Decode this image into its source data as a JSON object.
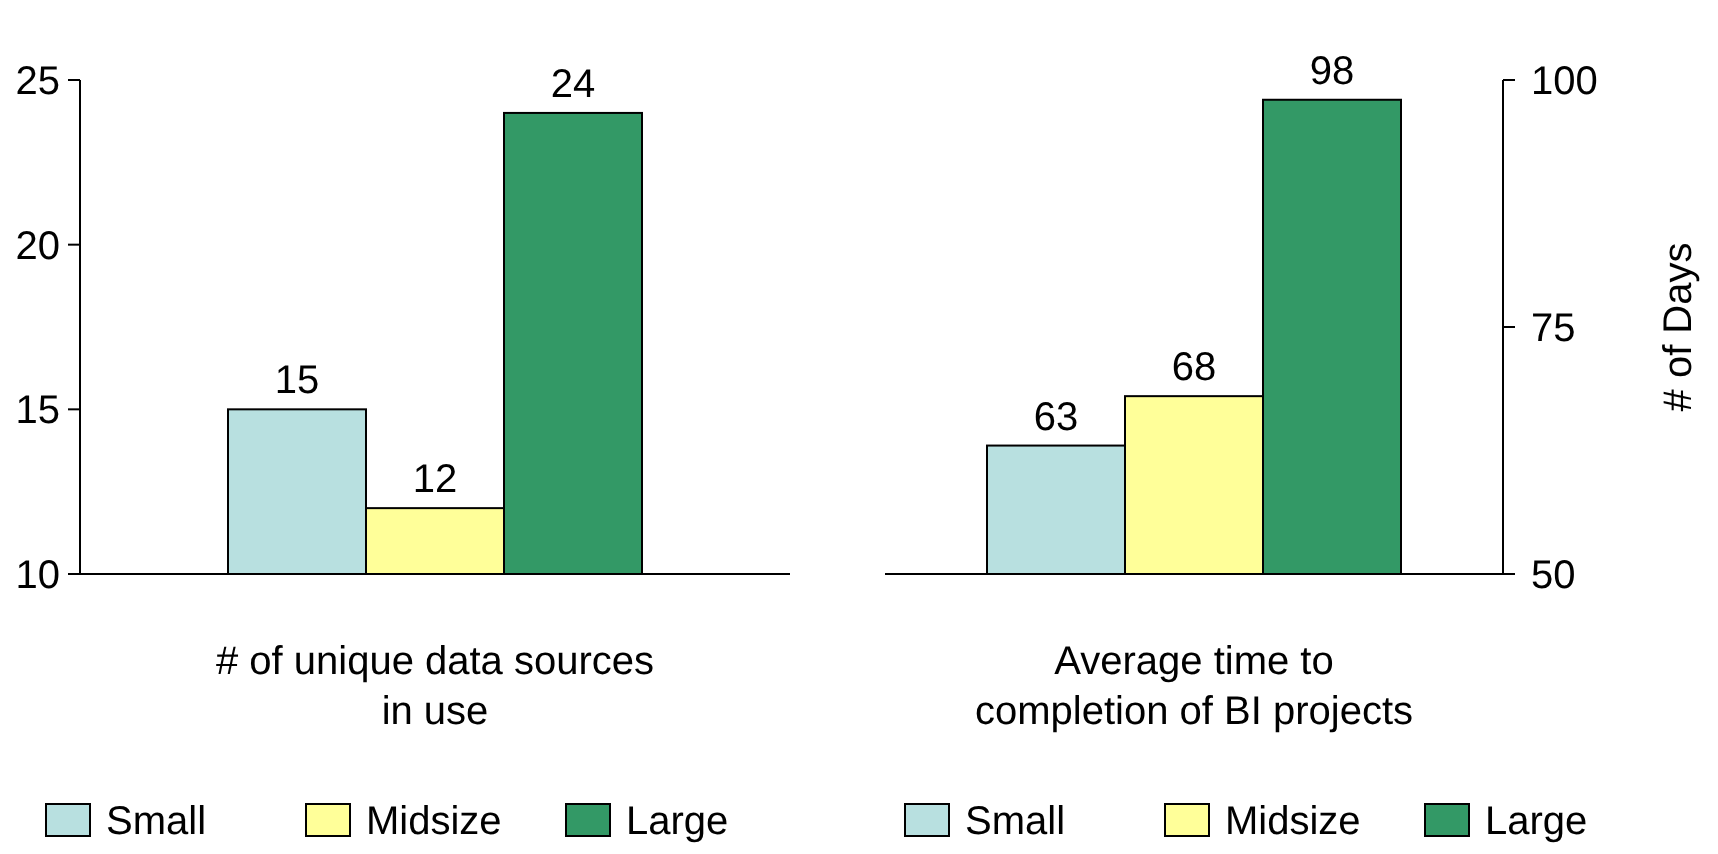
{
  "chart_data": [
    {
      "type": "bar",
      "categories": [
        null
      ],
      "xlabel": "# of unique data sources in use",
      "ylim": [
        10,
        25
      ],
      "yticks": [
        10,
        15,
        20,
        25
      ],
      "data_labels": true,
      "legend": "bottom",
      "grid": false,
      "series": [
        {
          "name": "Small",
          "color": "#b8e0e0",
          "values": [
            15
          ]
        },
        {
          "name": "Midsize",
          "color": "#ffff99",
          "values": [
            12
          ]
        },
        {
          "name": "Large",
          "color": "#339966",
          "values": [
            24
          ]
        }
      ]
    },
    {
      "type": "bar",
      "categories": [
        null
      ],
      "xlabel": "Average time to completion of BI projects",
      "ylabel": "# of Days",
      "ylim": [
        50,
        100
      ],
      "yticks": [
        50,
        75,
        100
      ],
      "data_labels": true,
      "legend": "bottom",
      "grid": false,
      "series": [
        {
          "name": "Small",
          "color": "#b8e0e0",
          "values": [
            63
          ]
        },
        {
          "name": "Midsize",
          "color": "#ffff99",
          "values": [
            68
          ]
        },
        {
          "name": "Large",
          "color": "#339966",
          "values": [
            98
          ]
        }
      ]
    }
  ]
}
